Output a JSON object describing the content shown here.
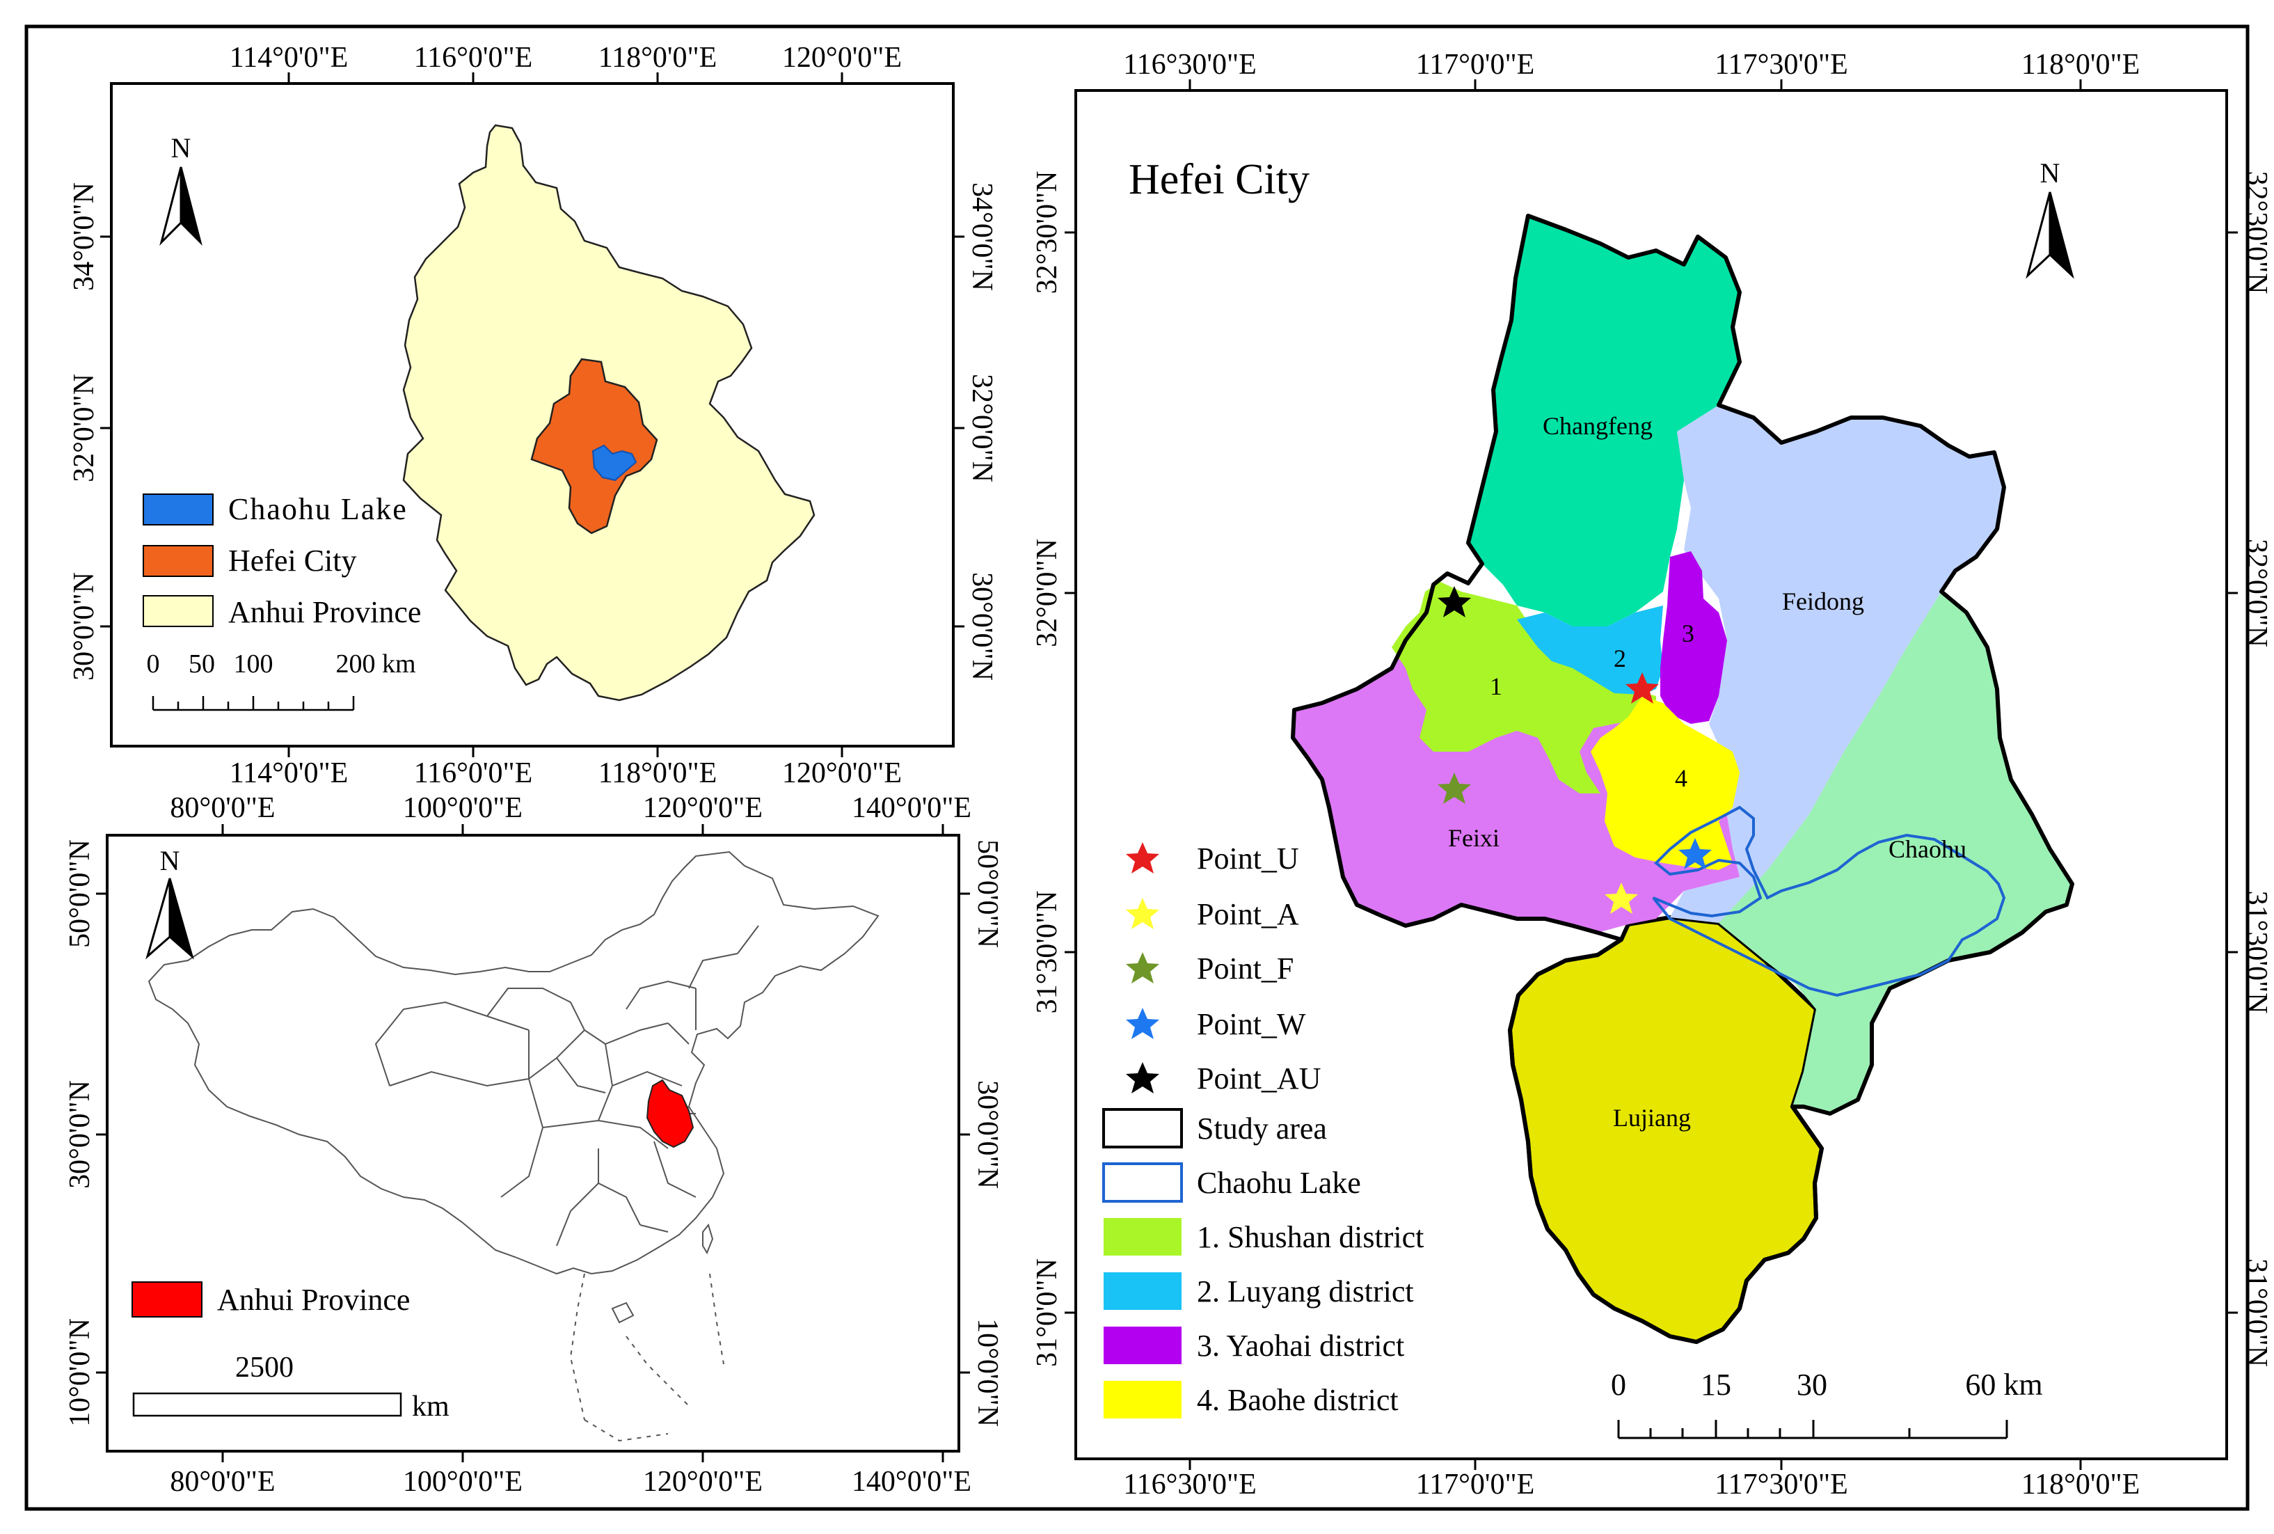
{
  "anhui_panel": {
    "top_ticks": [
      "114°0'0\"E",
      "116°0'0\"E",
      "118°0'0\"E",
      "120°0'0\"E"
    ],
    "bottom_ticks": [
      "114°0'0\"E",
      "116°0'0\"E",
      "118°0'0\"E",
      "120°0'0\"E"
    ],
    "left_ticks": [
      "34°0'0\"N",
      "32°0'0\"N",
      "30°0'0\"N"
    ],
    "right_ticks": [
      "34°0'0\"N",
      "32°0'0\"N",
      "30°0'0\"N"
    ],
    "north": "N",
    "legend": [
      {
        "label": "Chaohu Lake",
        "color": "#1f78e6"
      },
      {
        "label": "Hefei City",
        "color": "#f0641e"
      },
      {
        "label": "Anhui Province",
        "color": "#ffffc8"
      }
    ],
    "scale_labels": [
      "0",
      "50",
      "100",
      "200 km"
    ]
  },
  "china_panel": {
    "top_ticks": [
      "80°0'0\"E",
      "100°0'0\"E",
      "120°0'0\"E",
      "140°0'0\"E"
    ],
    "bottom_ticks": [
      "80°0'0\"E",
      "100°0'0\"E",
      "120°0'0\"E",
      "140°0'0\"E"
    ],
    "left_ticks": [
      "50°0'0\"N",
      "30°0'0\"N",
      "10°0'0\"N"
    ],
    "right_ticks": [
      "50°0'0\"N",
      "30°0'0\"N",
      "10°0'0\"N"
    ],
    "north": "N",
    "legend": [
      {
        "label": "Anhui Province",
        "color": "#ff0000"
      }
    ],
    "scale_number": "2500",
    "scale_unit": "km"
  },
  "hefei_panel": {
    "title": "Hefei City",
    "top_ticks": [
      "116°30'0\"E",
      "117°0'0\"E",
      "117°30'0\"E",
      "118°0'0\"E"
    ],
    "bottom_ticks": [
      "116°30'0\"E",
      "117°0'0\"E",
      "117°30'0\"E",
      "118°0'0\"E"
    ],
    "left_ticks": [
      "32°30'0\"N",
      "32°0'0\"N",
      "31°30'0\"N",
      "31°0'0\"N"
    ],
    "right_ticks": [
      "32°30'0\"N",
      "32°0'0\"N",
      "31°30'0\"N",
      "31°0'0\"N"
    ],
    "north": "N",
    "regions": {
      "changfeng": {
        "label": "Changfeng",
        "color": "#00e3a5"
      },
      "feidong": {
        "label": "Feidong",
        "color": "#bed2ff"
      },
      "chaohu": {
        "label": "Chaohu",
        "color": "#9bf0b4"
      },
      "lujiang": {
        "label": "Lujiang",
        "color": "#e6e600"
      },
      "feixi": {
        "label": "Feixi",
        "color": "#dc78f5"
      },
      "shushan": {
        "label": "1",
        "color": "#aaf528"
      },
      "luyang": {
        "label": "2",
        "color": "#19c3f5"
      },
      "yaohai": {
        "label": "3",
        "color": "#b400f0"
      },
      "baohe": {
        "label": "4",
        "color": "#ffff00"
      }
    },
    "points": [
      {
        "label": "Point_U",
        "color": "#e61e1e"
      },
      {
        "label": "Point_A",
        "color": "#ffff32"
      },
      {
        "label": "Point_F",
        "color": "#6e9628"
      },
      {
        "label": "Point_W",
        "color": "#1e78f0"
      },
      {
        "label": "Point_AU",
        "color": "#000000"
      }
    ],
    "legend_areas": [
      {
        "label": "Study area",
        "fill": "#ffffff",
        "stroke": "#000000"
      },
      {
        "label": "Chaohu Lake",
        "fill": "#ffffff",
        "stroke": "#1e64d2"
      },
      {
        "label": "1. Shushan district",
        "fill": "#aaf528",
        "stroke": "none"
      },
      {
        "label": "2. Luyang district",
        "fill": "#19c3f5",
        "stroke": "none"
      },
      {
        "label": "3. Yaohai district",
        "fill": "#b400f0",
        "stroke": "none"
      },
      {
        "label": "4. Baohe district",
        "fill": "#ffff00",
        "stroke": "none"
      }
    ],
    "scale_labels": [
      "0",
      "15",
      "30",
      "60 km"
    ]
  }
}
